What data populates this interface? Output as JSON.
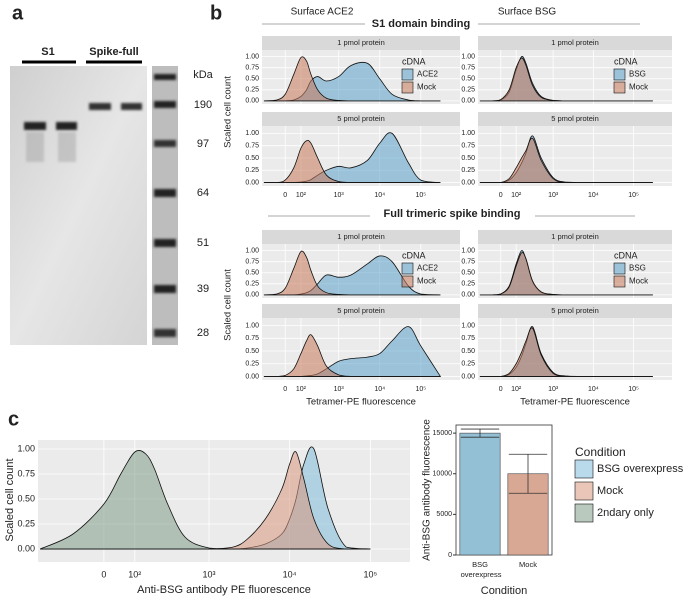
{
  "panel_labels": [
    "a",
    "b",
    "c"
  ],
  "gel": {
    "lanes": [
      "S1",
      "Spike-full"
    ],
    "marker_unit": "kDa",
    "markers": [
      190,
      97,
      64,
      51,
      39,
      28
    ]
  },
  "panel_b": {
    "column_titles": [
      "Surface ACE2",
      "Surface BSG"
    ],
    "row_titles": [
      "S1 domain binding",
      "Full trimeric spike binding"
    ]
  },
  "chart_data": [
    {
      "type": "density",
      "facets": [
        "1 pmol protein",
        "5 pmol protein"
      ],
      "ylabel": "Scaled cell count",
      "legend_title": "cDNA",
      "xscale": "asinh",
      "grid": true,
      "x": [
        -150,
        -50,
        0,
        50,
        100,
        150,
        200,
        300,
        500,
        1000,
        2000,
        5000,
        10000,
        20000,
        50000,
        100000,
        300000
      ],
      "xlim": [
        -170,
        900000
      ],
      "xticks": [
        0,
        {
          "value": 100,
          "label": "10²"
        },
        {
          "value": 1000,
          "label": "10³"
        },
        {
          "value": 10000,
          "label": "10⁴"
        },
        {
          "value": 100000,
          "label": "10⁵"
        }
      ],
      "ylim": [
        -0.07,
        1.15
      ],
      "yticks": [
        {
          "value": 0,
          "label": "0.00"
        },
        {
          "value": 0.25,
          "label": "0.25"
        },
        {
          "value": 0.5,
          "label": "0.50"
        },
        {
          "value": 0.75,
          "label": "0.75"
        },
        {
          "value": 1,
          "label": "1.00"
        }
      ],
      "series": [
        {
          "name": "ACE2",
          "color": "#5aa0c8",
          "values": [
            [
              0,
              0,
              0,
              0.02,
              0.1,
              0.25,
              0.45,
              0.55,
              0.45,
              0.55,
              0.8,
              0.85,
              0.5,
              0.15,
              0.02,
              0,
              0
            ],
            [
              0,
              0,
              0,
              0,
              0.01,
              0.03,
              0.06,
              0.15,
              0.25,
              0.33,
              0.3,
              0.45,
              0.8,
              1.0,
              0.4,
              0.05,
              0
            ]
          ]
        },
        {
          "name": "Mock",
          "color": "#c8785a",
          "values": [
            [
              0,
              0.02,
              0.15,
              0.6,
              0.98,
              0.9,
              0.6,
              0.25,
              0.06,
              0.01,
              0,
              0,
              0,
              0,
              0,
              0,
              0
            ],
            [
              0,
              0,
              0.05,
              0.3,
              0.7,
              0.85,
              0.8,
              0.5,
              0.15,
              0.02,
              0,
              0,
              0,
              0,
              0,
              0,
              0
            ]
          ]
        }
      ]
    },
    {
      "type": "density",
      "facets": [
        "1 pmol protein",
        "5 pmol protein"
      ],
      "legend_title": "cDNA",
      "xscale": "asinh",
      "grid": true,
      "x": [
        -150,
        -50,
        0,
        50,
        100,
        150,
        200,
        300,
        500,
        1000,
        2000,
        5000,
        10000,
        20000,
        50000,
        100000,
        300000
      ],
      "xlim": [
        -170,
        900000
      ],
      "xticks": [
        0,
        {
          "value": 100,
          "label": "10²"
        },
        {
          "value": 1000,
          "label": "10³"
        },
        {
          "value": 10000,
          "label": "10⁴"
        },
        {
          "value": 100000,
          "label": "10⁵"
        }
      ],
      "ylim": [
        -0.07,
        1.15
      ],
      "yticks": [
        {
          "value": 0,
          "label": "0.00"
        },
        {
          "value": 0.25,
          "label": "0.25"
        },
        {
          "value": 0.5,
          "label": "0.50"
        },
        {
          "value": 0.75,
          "label": "0.75"
        },
        {
          "value": 1,
          "label": "1.00"
        }
      ],
      "series": [
        {
          "name": "BSG",
          "color": "#5aa0c8",
          "values": [
            [
              0,
              0,
              0.02,
              0.2,
              0.7,
              1.0,
              0.85,
              0.4,
              0.1,
              0.01,
              0,
              0,
              0,
              0,
              0,
              0,
              0
            ],
            [
              0,
              0,
              0,
              0.05,
              0.2,
              0.4,
              0.6,
              0.95,
              0.5,
              0.1,
              0.01,
              0,
              0,
              0,
              0,
              0,
              0
            ]
          ]
        },
        {
          "name": "Mock",
          "color": "#c8785a",
          "values": [
            [
              0,
              0,
              0.03,
              0.25,
              0.75,
              0.97,
              0.8,
              0.35,
              0.08,
              0.01,
              0,
              0,
              0,
              0,
              0,
              0,
              0
            ],
            [
              0,
              0,
              0,
              0.08,
              0.3,
              0.5,
              0.65,
              0.9,
              0.45,
              0.08,
              0,
              0,
              0,
              0,
              0,
              0,
              0
            ]
          ]
        }
      ]
    },
    {
      "type": "density",
      "facets": [
        "1 pmol protein",
        "5 pmol protein"
      ],
      "ylabel": "Scaled cell count",
      "xlabel": "Tetramer-PE fluorescence",
      "legend_title": "cDNA",
      "xscale": "asinh",
      "grid": true,
      "x": [
        -150,
        -50,
        0,
        50,
        100,
        150,
        200,
        300,
        500,
        1000,
        2000,
        5000,
        10000,
        20000,
        50000,
        100000,
        300000
      ],
      "xlim": [
        -170,
        900000
      ],
      "xticks": [
        0,
        {
          "value": 100,
          "label": "10²"
        },
        {
          "value": 1000,
          "label": "10³"
        },
        {
          "value": 10000,
          "label": "10⁴"
        },
        {
          "value": 100000,
          "label": "10⁵"
        }
      ],
      "ylim": [
        -0.07,
        1.15
      ],
      "yticks": [
        {
          "value": 0,
          "label": "0.00"
        },
        {
          "value": 0.25,
          "label": "0.25"
        },
        {
          "value": 0.5,
          "label": "0.50"
        },
        {
          "value": 0.75,
          "label": "0.75"
        },
        {
          "value": 1,
          "label": "1.00"
        }
      ],
      "series": [
        {
          "name": "ACE2",
          "color": "#5aa0c8",
          "values": [
            [
              0,
              0,
              0,
              0,
              0.02,
              0.05,
              0.1,
              0.25,
              0.45,
              0.4,
              0.45,
              0.7,
              0.88,
              0.75,
              0.2,
              0.02,
              0
            ],
            [
              0,
              0,
              0,
              0,
              0,
              0.01,
              0.02,
              0.05,
              0.15,
              0.3,
              0.35,
              0.38,
              0.45,
              0.7,
              0.98,
              0.6,
              0
            ]
          ]
        },
        {
          "name": "Mock",
          "color": "#c8785a",
          "values": [
            [
              0,
              0.02,
              0.15,
              0.6,
              0.98,
              0.85,
              0.55,
              0.2,
              0.05,
              0.01,
              0,
              0,
              0,
              0,
              0,
              0,
              0
            ],
            [
              0,
              0,
              0.02,
              0.15,
              0.45,
              0.7,
              0.82,
              0.6,
              0.2,
              0.03,
              0,
              0,
              0,
              0,
              0,
              0,
              0
            ]
          ]
        }
      ]
    },
    {
      "type": "density",
      "facets": [
        "1 pmol protein",
        "5 pmol protein"
      ],
      "xlabel": "Tetramer-PE fluorescence",
      "legend_title": "cDNA",
      "xscale": "asinh",
      "grid": true,
      "x": [
        -150,
        -50,
        0,
        50,
        100,
        150,
        200,
        300,
        500,
        1000,
        2000,
        5000,
        10000,
        20000,
        50000,
        100000,
        300000
      ],
      "xlim": [
        -170,
        900000
      ],
      "xticks": [
        0,
        {
          "value": 100,
          "label": "10²"
        },
        {
          "value": 1000,
          "label": "10³"
        },
        {
          "value": 10000,
          "label": "10⁴"
        },
        {
          "value": 100000,
          "label": "10⁵"
        }
      ],
      "ylim": [
        -0.07,
        1.15
      ],
      "yticks": [
        {
          "value": 0,
          "label": "0.00"
        },
        {
          "value": 0.25,
          "label": "0.25"
        },
        {
          "value": 0.5,
          "label": "0.50"
        },
        {
          "value": 0.75,
          "label": "0.75"
        },
        {
          "value": 1,
          "label": "1.00"
        }
      ],
      "series": [
        {
          "name": "BSG",
          "color": "#5aa0c8",
          "values": [
            [
              0,
              0,
              0.02,
              0.2,
              0.7,
              1.0,
              0.8,
              0.3,
              0.06,
              0.01,
              0,
              0,
              0,
              0,
              0,
              0,
              0
            ],
            [
              0,
              0,
              0,
              0.04,
              0.18,
              0.4,
              0.65,
              0.98,
              0.45,
              0.08,
              0.01,
              0,
              0,
              0,
              0,
              0,
              0
            ]
          ]
        },
        {
          "name": "Mock",
          "color": "#c8785a",
          "values": [
            [
              0,
              0,
              0.02,
              0.18,
              0.65,
              0.95,
              0.82,
              0.32,
              0.07,
              0.01,
              0,
              0,
              0,
              0,
              0,
              0,
              0
            ],
            [
              0,
              0,
              0,
              0.06,
              0.25,
              0.48,
              0.7,
              0.95,
              0.42,
              0.06,
              0,
              0,
              0,
              0,
              0,
              0,
              0
            ]
          ]
        }
      ]
    },
    {
      "type": "density",
      "xlabel": "Anti-BSG antibody PE fluorescence",
      "ylabel": "Scaled cell count",
      "legend_title": "Condition",
      "xscale": "asinh",
      "grid": true,
      "x": [
        -300,
        -100,
        0,
        50,
        100,
        150,
        200,
        300,
        500,
        1000,
        2000,
        3000,
        5000,
        8000,
        10000,
        12000,
        15000,
        20000,
        30000,
        50000,
        100000
      ],
      "xlim": [
        -320,
        310000
      ],
      "xticks": [
        0,
        {
          "value": 100,
          "label": "10²"
        },
        {
          "value": 1000,
          "label": "10³"
        },
        {
          "value": 10000,
          "label": "10⁴"
        },
        {
          "value": 100000,
          "label": "10⁵"
        }
      ],
      "ylim": [
        -0.13,
        1.09
      ],
      "yticks": [
        {
          "value": 0,
          "label": "0.00"
        },
        {
          "value": 0.25,
          "label": "0.25"
        },
        {
          "value": 0.5,
          "label": "0.50"
        },
        {
          "value": 0.75,
          "label": "0.75"
        },
        {
          "value": 1,
          "label": "1.00"
        }
      ],
      "series": [
        {
          "name": "BSG overexpress",
          "color": "#7fbcd8",
          "values": [
            0,
            0,
            0,
            0,
            0,
            0,
            0,
            0,
            0,
            0,
            0,
            0.01,
            0.05,
            0.15,
            0.3,
            0.5,
            0.85,
            1.0,
            0.4,
            0.02,
            0
          ]
        },
        {
          "name": "Mock",
          "color": "#d9977e",
          "values": [
            0,
            0,
            0,
            0,
            0,
            0,
            0,
            0,
            0,
            0,
            0.02,
            0.1,
            0.3,
            0.6,
            0.85,
            0.97,
            0.7,
            0.3,
            0.05,
            0,
            0
          ]
        },
        {
          "name": "2ndary only",
          "color": "#7f9c88",
          "values": [
            0,
            0.15,
            0.45,
            0.75,
            0.97,
            0.95,
            0.8,
            0.45,
            0.12,
            0.01,
            0,
            0,
            0,
            0,
            0,
            0,
            0,
            0,
            0,
            0,
            0
          ]
        }
      ]
    },
    {
      "type": "bar",
      "xlabel": "Condition",
      "ylabel": "Anti-BSG antibody fluorescence",
      "categories": [
        "BSG overexpress",
        "Mock"
      ],
      "values": [
        15000,
        10000
      ],
      "errors": [
        500,
        2400
      ],
      "colors": [
        "#93c0d5",
        "#d9a895"
      ],
      "ylim": [
        0,
        16000
      ],
      "yticks": [
        0,
        5000,
        10000,
        15000
      ]
    }
  ]
}
